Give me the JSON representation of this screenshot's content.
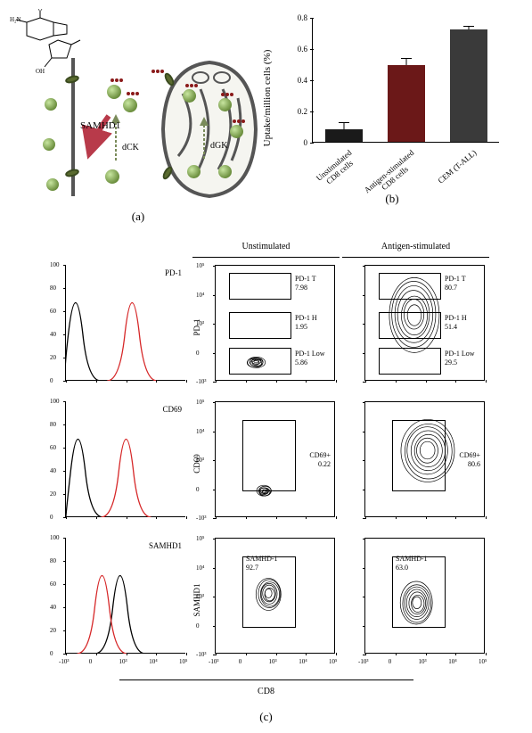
{
  "panel_a": {
    "label": "(a)",
    "labels": {
      "samhd1": "SAMHD1",
      "dck": "dCK",
      "dgk": "dGK",
      "nh2": "H₂N",
      "oh": "OH",
      "n": "N",
      "o": "O"
    },
    "colors": {
      "blob_light": "#c8e6a0",
      "blob_dark": "#6b8e3d",
      "red_dot": "#8b1a1a",
      "membrane": "#666666",
      "channel": "#5a6b2f",
      "arrow": "#b83a4a"
    }
  },
  "panel_b": {
    "label": "(b)",
    "y_axis_label": "Uptake/million cells (%)",
    "ylim": [
      0,
      0.8
    ],
    "ytick_step": 0.2,
    "yticks": [
      "0",
      "0.2",
      "0.4",
      "0.6",
      "0.8"
    ],
    "categories": [
      "Unstimulated\nCD8 cells",
      "Antigen-stimulated\nCD8 cells",
      "CEM (T-ALL)"
    ],
    "values": [
      0.08,
      0.49,
      0.72
    ],
    "errors": [
      0.04,
      0.04,
      0.02
    ],
    "bar_colors": [
      "#1a1a1a",
      "#6b1818",
      "#3a3a3a"
    ],
    "bar_width": 0.6,
    "background": "#ffffff"
  },
  "panel_c": {
    "label": "(c)",
    "column_headers": [
      "",
      "Unstimulated",
      "Antigen-stimulated"
    ],
    "rows": [
      {
        "marker": "PD-1",
        "y_axis": "PD-1",
        "hist_colors": [
          "#000000",
          "#d62728"
        ],
        "hist_unstim_peak_x": 0.08,
        "hist_stim_peak_x": 0.55,
        "unstim_gates": [
          {
            "name": "PD-1 T",
            "value": "7.98"
          },
          {
            "name": "PD-1 H",
            "value": "1.95"
          },
          {
            "name": "PD-1 Low",
            "value": "5.86"
          }
        ],
        "stim_gates": [
          {
            "name": "PD-1 T",
            "value": "80.7"
          },
          {
            "name": "PD-1 H",
            "value": "51.4"
          },
          {
            "name": "PD-1 Low",
            "value": "29.5"
          }
        ]
      },
      {
        "marker": "CD69",
        "y_axis": "CD69",
        "hist_colors": [
          "#000000",
          "#d62728"
        ],
        "hist_unstim_peak_x": 0.1,
        "hist_stim_peak_x": 0.5,
        "unstim_gates": [
          {
            "name": "CD69+",
            "value": "0.22"
          }
        ],
        "stim_gates": [
          {
            "name": "CD69+",
            "value": "80.6"
          }
        ]
      },
      {
        "marker": "SAMHD1",
        "y_axis": "SAMHD1",
        "hist_colors": [
          "#000000",
          "#d62728"
        ],
        "hist_unstim_peak_x": 0.45,
        "hist_stim_peak_x": 0.3,
        "unstim_gates": [
          {
            "name": "SAMHD-1",
            "value": "92.7"
          }
        ],
        "stim_gates": [
          {
            "name": "SAMHD-1",
            "value": "63.0"
          }
        ]
      }
    ],
    "x_axis_bottom": "CD8",
    "log_ticks": [
      "-10³",
      "0",
      "10³",
      "10⁴",
      "10⁵"
    ],
    "hist_y_ticks": [
      "0",
      "20",
      "40",
      "60",
      "80",
      "100"
    ],
    "contour_color": "#000000"
  }
}
